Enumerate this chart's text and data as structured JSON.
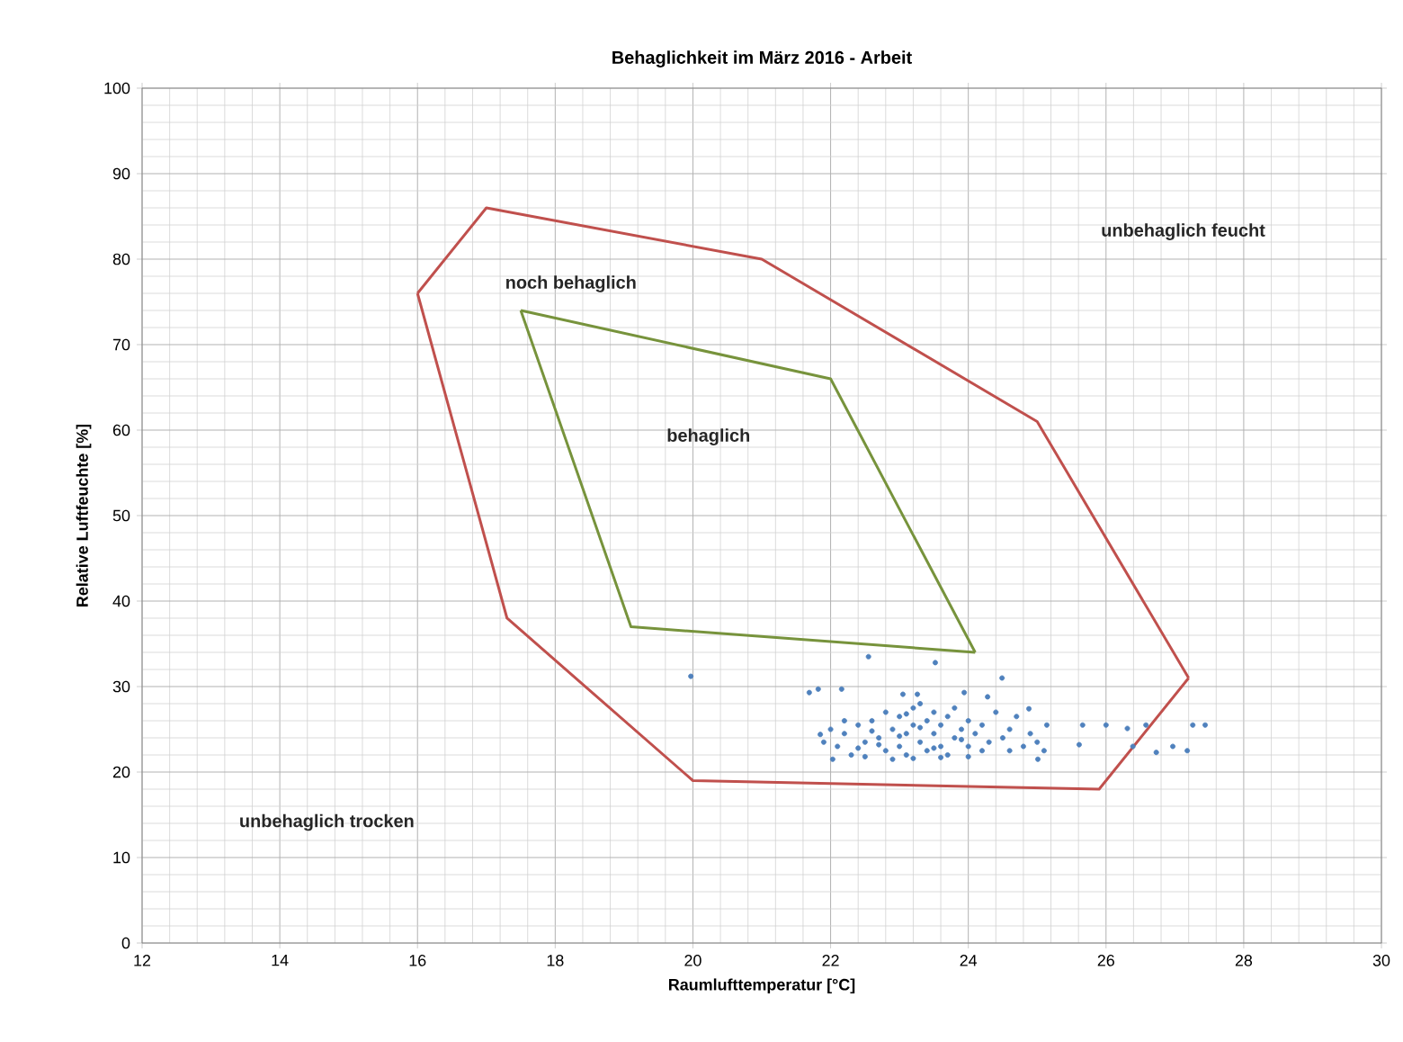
{
  "chart_data": {
    "type": "line",
    "title": "Behaglichkeit im März 2016 - Arbeit",
    "xlabel": "Raumlufttemperatur [°C]",
    "ylabel": "Relative Luftfeuchte  [%]",
    "xlim": [
      12,
      30
    ],
    "ylim": [
      0,
      100
    ],
    "xticks": [
      12,
      14,
      16,
      18,
      20,
      22,
      24,
      26,
      28,
      30
    ],
    "yticks": [
      0,
      10,
      20,
      30,
      40,
      50,
      60,
      70,
      80,
      90,
      100
    ],
    "grid": true,
    "marker": "circle",
    "annotations": [
      "unbehaglich feucht",
      "noch behaglich",
      "behaglich",
      "unbehaglich trocken"
    ],
    "series": [
      {
        "color": "#c0504d",
        "marker": "none",
        "x": [
          16,
          17,
          21,
          25,
          27.2
        ],
        "values": [
          76,
          86,
          80,
          61,
          31
        ]
      },
      {
        "color": "#c0504d",
        "marker": "none",
        "x": [
          16,
          17.3,
          20,
          25.9,
          27.2
        ],
        "values": [
          76,
          38,
          19,
          18,
          31
        ]
      },
      {
        "color": "#77933c",
        "marker": "none",
        "x": [
          17.5,
          22,
          24.1
        ],
        "values": [
          74,
          66,
          34
        ]
      },
      {
        "color": "#77933c",
        "marker": "none",
        "x": [
          17.5,
          19.1,
          24.1
        ],
        "values": [
          74,
          37,
          34
        ]
      },
      {
        "type": "scatter",
        "color": "#4f81bd",
        "x": [
          19.97,
          22.55,
          23.52,
          24.49,
          21.69,
          21.82,
          22.16,
          23.05,
          23.26,
          23.94,
          24.28,
          24.88,
          25.14,
          25.66,
          26.0,
          26.31,
          26.58,
          27.26,
          27.44,
          26.97,
          27.18,
          26.73,
          25.61,
          26.39,
          21.85,
          25.01,
          22.03,
          22.1,
          22.2,
          22.3,
          22.4,
          22.5,
          22.5,
          22.6,
          22.7,
          22.8,
          22.8,
          22.9,
          23.0,
          23.0,
          23.1,
          23.1,
          23.2,
          23.2,
          23.3,
          23.3,
          23.4,
          23.4,
          23.5,
          23.5,
          23.6,
          23.6,
          23.7,
          23.7,
          23.8,
          23.8,
          23.9,
          24.0,
          24.0,
          24.1,
          24.2,
          24.2,
          24.3,
          24.4,
          24.5,
          24.6,
          24.7,
          24.8,
          24.9,
          25.0,
          25.1,
          24.6,
          22.2,
          22.0,
          21.9,
          22.4,
          22.6,
          22.9,
          23.2,
          23.6,
          24.0,
          23.0,
          23.3,
          23.5,
          23.9,
          22.7,
          23.1
        ],
        "values": [
          31.2,
          33.5,
          32.8,
          31.0,
          29.3,
          29.7,
          29.7,
          29.1,
          29.1,
          29.3,
          28.8,
          27.4,
          25.5,
          25.5,
          25.5,
          25.1,
          25.5,
          25.5,
          25.5,
          23.0,
          22.5,
          22.3,
          23.2,
          23.0,
          24.4,
          21.5,
          21.5,
          23.0,
          24.5,
          22.0,
          25.5,
          23.5,
          21.8,
          26.0,
          24.0,
          22.5,
          27.0,
          25.0,
          23.0,
          26.5,
          24.5,
          22.0,
          27.5,
          25.5,
          23.5,
          28.0,
          26.0,
          22.5,
          24.5,
          27.0,
          23.0,
          25.5,
          26.5,
          22.0,
          24.0,
          27.5,
          25.0,
          23.0,
          26.0,
          24.5,
          22.5,
          25.5,
          23.5,
          27.0,
          24.0,
          22.5,
          26.5,
          23.0,
          24.5,
          23.5,
          22.5,
          25.0,
          26.0,
          25.0,
          23.5,
          22.8,
          24.8,
          21.5,
          21.6,
          21.7,
          21.8,
          24.2,
          25.2,
          22.8,
          23.8,
          23.2,
          26.8
        ]
      }
    ]
  }
}
